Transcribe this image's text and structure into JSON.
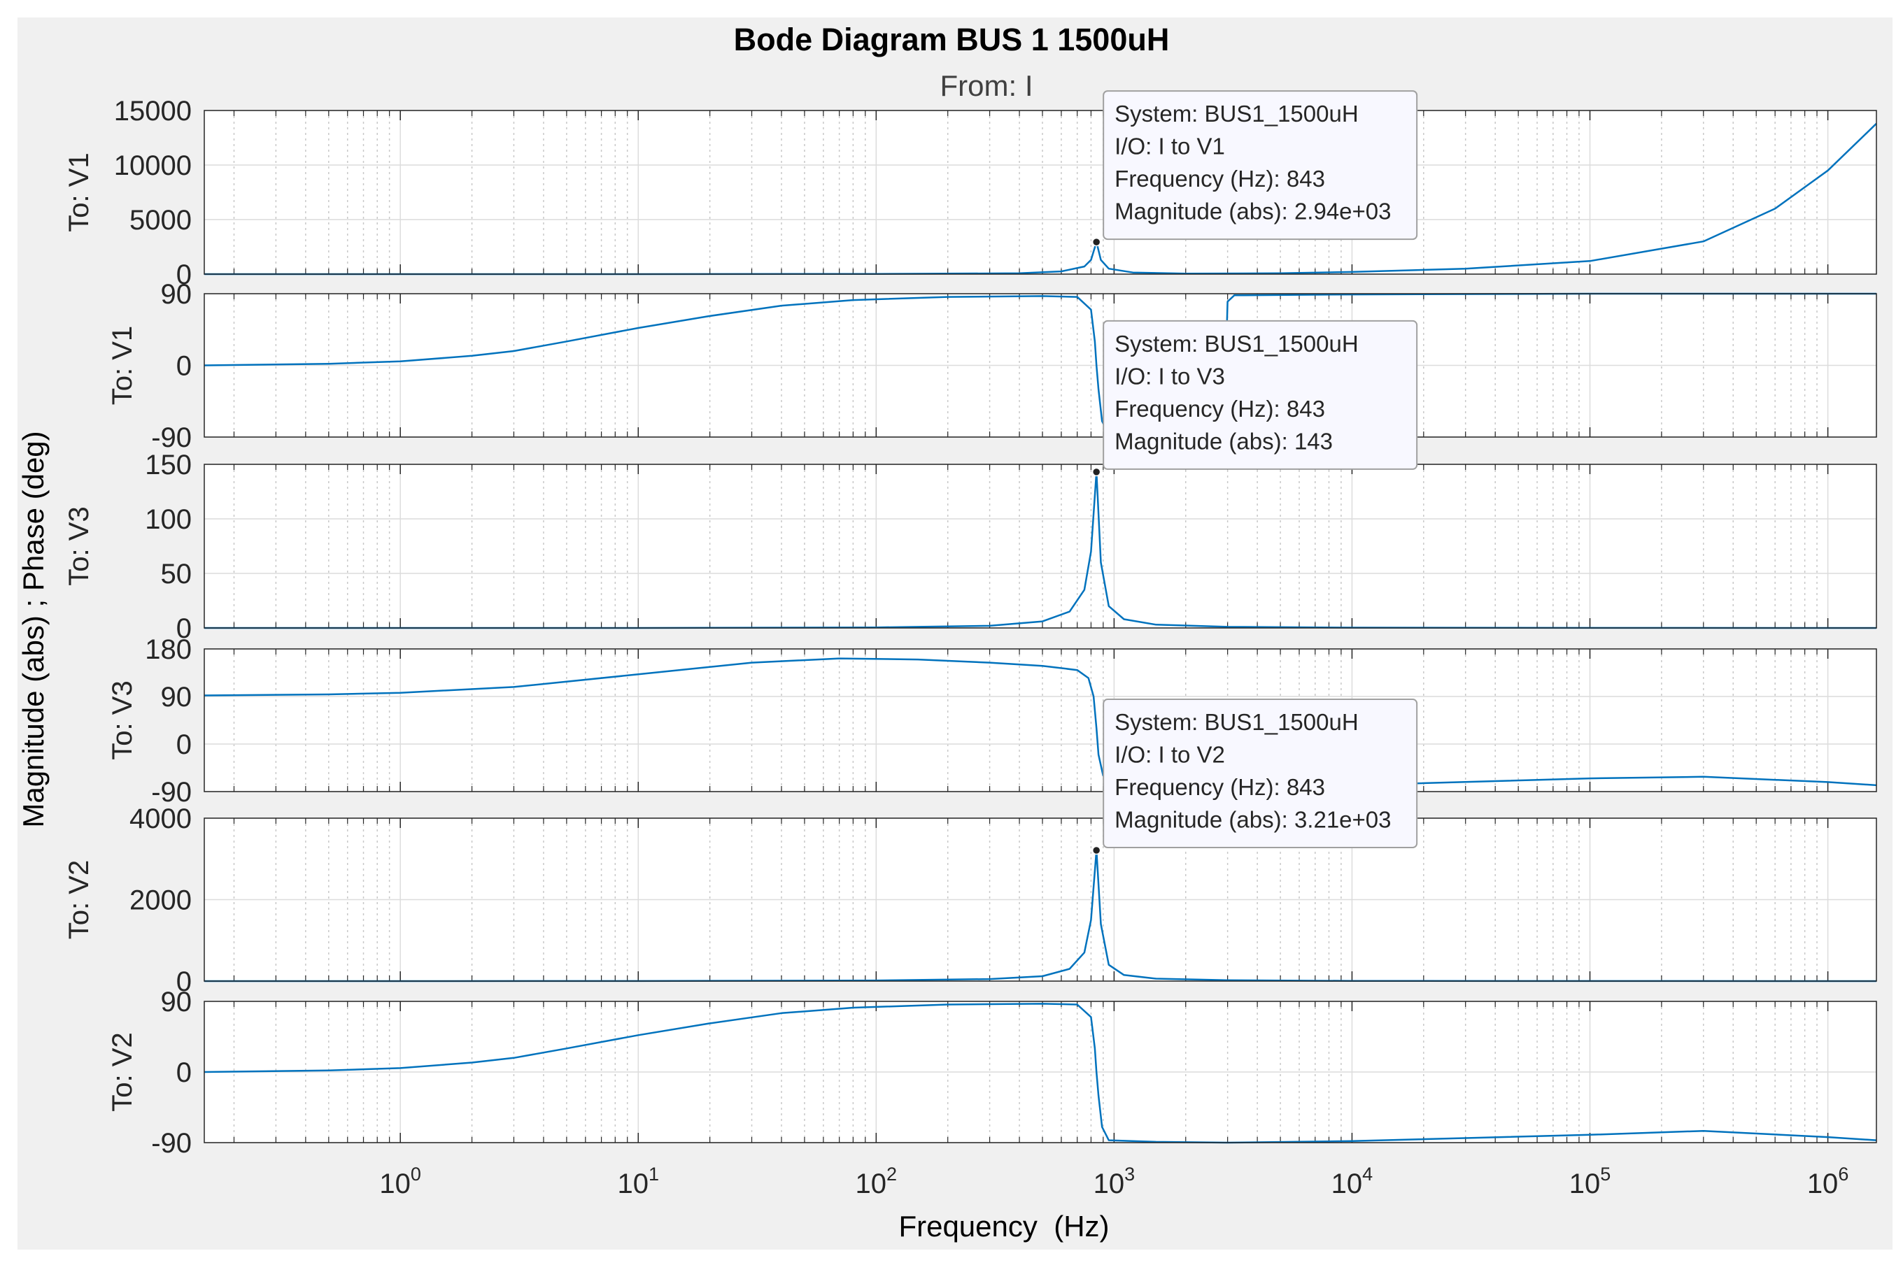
{
  "colors": {
    "figure_bg": "#f0f0f0",
    "axes_bg": "#ffffff",
    "series": "#0072bd",
    "grid_major": "#dcdcdc",
    "grid_minor": "#c8c8c8",
    "datatip_bg": "#f8f8ff",
    "datatip_border": "#a0a0a0"
  },
  "chart_data": {
    "type": "line",
    "title": "Bode Diagram BUS 1 1500uH",
    "subtitle": "From: I",
    "xlabel": "Frequency  (Hz)",
    "ylabel": "Magnitude (abs) ; Phase (deg)",
    "x_scale": "log",
    "xlim": [
      0.15,
      1600000
    ],
    "grid": true,
    "x_ticks": [
      {
        "value": 1,
        "base": "10",
        "exp": "0"
      },
      {
        "value": 10,
        "base": "10",
        "exp": "1"
      },
      {
        "value": 100,
        "base": "10",
        "exp": "2"
      },
      {
        "value": 1000,
        "base": "10",
        "exp": "3"
      },
      {
        "value": 10000,
        "base": "10",
        "exp": "4"
      },
      {
        "value": 100000,
        "base": "10",
        "exp": "5"
      },
      {
        "value": 1000000,
        "base": "10",
        "exp": "6"
      }
    ],
    "panels": [
      {
        "ylabel": "To: V1",
        "kind": "magnitude",
        "ylim": [
          0,
          15000
        ],
        "yticks": [
          {
            "v": 0,
            "label": "0"
          },
          {
            "v": 5000,
            "label": "5000"
          },
          {
            "v": 10000,
            "label": "10000"
          },
          {
            "v": 15000,
            "label": "15000"
          }
        ],
        "points": [
          [
            0.15,
            0
          ],
          [
            1,
            0
          ],
          [
            10,
            2
          ],
          [
            100,
            20
          ],
          [
            400,
            80
          ],
          [
            600,
            250
          ],
          [
            750,
            700
          ],
          [
            800,
            1300
          ],
          [
            843,
            2940
          ],
          [
            880,
            1300
          ],
          [
            950,
            500
          ],
          [
            1200,
            150
          ],
          [
            2000,
            50
          ],
          [
            5000,
            80
          ],
          [
            10000,
            200
          ],
          [
            30000,
            500
          ],
          [
            100000,
            1200
          ],
          [
            300000,
            3000
          ],
          [
            600000,
            6000
          ],
          [
            1000000,
            9500
          ],
          [
            1600000,
            13800
          ]
        ],
        "datatip": {
          "x": 843,
          "y": 2940,
          "lines": [
            "System: BUS1_1500uH",
            "I/O: I to V1",
            "Frequency (Hz): 843",
            "Magnitude (abs): 2.94e+03"
          ]
        }
      },
      {
        "ylabel": "To: V1",
        "kind": "phase",
        "ylim": [
          -90,
          90
        ],
        "yticks": [
          {
            "v": -90,
            "label": "-90"
          },
          {
            "v": 0,
            "label": "0"
          },
          {
            "v": 90,
            "label": "90"
          }
        ],
        "points": [
          [
            0.15,
            0
          ],
          [
            0.5,
            2
          ],
          [
            1,
            5
          ],
          [
            2,
            12
          ],
          [
            3,
            18
          ],
          [
            5,
            30
          ],
          [
            10,
            47
          ],
          [
            20,
            62
          ],
          [
            40,
            75
          ],
          [
            80,
            82
          ],
          [
            200,
            86
          ],
          [
            500,
            87
          ],
          [
            700,
            86
          ],
          [
            800,
            70
          ],
          [
            830,
            30
          ],
          [
            843,
            0
          ],
          [
            860,
            -30
          ],
          [
            890,
            -70
          ],
          [
            950,
            -87
          ],
          [
            1500,
            -89
          ],
          [
            2500,
            -89
          ],
          [
            2900,
            -75
          ],
          [
            3000,
            80
          ],
          [
            3200,
            88
          ],
          [
            10000,
            89
          ],
          [
            100000,
            90
          ],
          [
            1600000,
            90
          ]
        ]
      },
      {
        "ylabel": "To: V3",
        "kind": "magnitude",
        "ylim": [
          0,
          150
        ],
        "yticks": [
          {
            "v": 0,
            "label": "0"
          },
          {
            "v": 50,
            "label": "50"
          },
          {
            "v": 100,
            "label": "100"
          },
          {
            "v": 150,
            "label": "150"
          }
        ],
        "points": [
          [
            0.15,
            0
          ],
          [
            10,
            0.02
          ],
          [
            100,
            0.5
          ],
          [
            300,
            2
          ],
          [
            500,
            6
          ],
          [
            650,
            15
          ],
          [
            750,
            35
          ],
          [
            800,
            70
          ],
          [
            843,
            143
          ],
          [
            880,
            60
          ],
          [
            950,
            20
          ],
          [
            1100,
            8
          ],
          [
            1500,
            3
          ],
          [
            3000,
            1
          ],
          [
            10000,
            0.3
          ],
          [
            100000,
            0.05
          ],
          [
            1600000,
            0
          ]
        ],
        "datatip": {
          "x": 843,
          "y": 143,
          "lines": [
            "System: BUS1_1500uH",
            "I/O: I to V3",
            "Frequency (Hz): 843",
            "Magnitude (abs): 143"
          ]
        }
      },
      {
        "ylabel": "To: V3",
        "kind": "phase",
        "ylim": [
          -90,
          180
        ],
        "yticks": [
          {
            "v": -90,
            "label": "-90"
          },
          {
            "v": 0,
            "label": "0"
          },
          {
            "v": 90,
            "label": "90"
          },
          {
            "v": 180,
            "label": "180"
          }
        ],
        "points": [
          [
            0.15,
            92
          ],
          [
            0.5,
            94
          ],
          [
            1,
            97
          ],
          [
            3,
            108
          ],
          [
            10,
            132
          ],
          [
            30,
            154
          ],
          [
            70,
            162
          ],
          [
            150,
            160
          ],
          [
            300,
            154
          ],
          [
            500,
            148
          ],
          [
            700,
            140
          ],
          [
            780,
            125
          ],
          [
            820,
            90
          ],
          [
            843,
            30
          ],
          [
            860,
            -20
          ],
          [
            900,
            -60
          ],
          [
            1000,
            -75
          ],
          [
            3000,
            -80
          ],
          [
            10000,
            -78
          ],
          [
            100000,
            -65
          ],
          [
            300000,
            -62
          ],
          [
            1000000,
            -72
          ],
          [
            1600000,
            -78
          ]
        ]
      },
      {
        "ylabel": "To: V2",
        "kind": "magnitude",
        "ylim": [
          0,
          4000
        ],
        "yticks": [
          {
            "v": 0,
            "label": "0"
          },
          {
            "v": 2000,
            "label": "2000"
          },
          {
            "v": 4000,
            "label": "4000"
          }
        ],
        "points": [
          [
            0.15,
            0
          ],
          [
            10,
            1
          ],
          [
            100,
            15
          ],
          [
            300,
            50
          ],
          [
            500,
            120
          ],
          [
            650,
            300
          ],
          [
            750,
            700
          ],
          [
            800,
            1500
          ],
          [
            843,
            3210
          ],
          [
            880,
            1400
          ],
          [
            950,
            400
          ],
          [
            1100,
            150
          ],
          [
            1500,
            60
          ],
          [
            3000,
            20
          ],
          [
            10000,
            5
          ],
          [
            100000,
            1
          ],
          [
            1600000,
            0
          ]
        ],
        "datatip": {
          "x": 843,
          "y": 3210,
          "lines": [
            "System: BUS1_1500uH",
            "I/O: I to V2",
            "Frequency (Hz): 843",
            "Magnitude (abs): 3.21e+03"
          ]
        }
      },
      {
        "ylabel": "To: V2",
        "kind": "phase",
        "ylim": [
          -90,
          90
        ],
        "yticks": [
          {
            "v": -90,
            "label": "-90"
          },
          {
            "v": 0,
            "label": "0"
          },
          {
            "v": 90,
            "label": "90"
          }
        ],
        "points": [
          [
            0.15,
            0
          ],
          [
            0.5,
            2
          ],
          [
            1,
            5
          ],
          [
            2,
            12
          ],
          [
            3,
            18
          ],
          [
            5,
            30
          ],
          [
            10,
            47
          ],
          [
            20,
            62
          ],
          [
            40,
            75
          ],
          [
            80,
            82
          ],
          [
            200,
            86
          ],
          [
            500,
            87
          ],
          [
            700,
            86
          ],
          [
            800,
            70
          ],
          [
            830,
            30
          ],
          [
            843,
            0
          ],
          [
            860,
            -30
          ],
          [
            890,
            -70
          ],
          [
            950,
            -87
          ],
          [
            1500,
            -89
          ],
          [
            3000,
            -90
          ],
          [
            10000,
            -88
          ],
          [
            100000,
            -80
          ],
          [
            300000,
            -75
          ],
          [
            1000000,
            -83
          ],
          [
            1600000,
            -87
          ]
        ]
      }
    ]
  }
}
